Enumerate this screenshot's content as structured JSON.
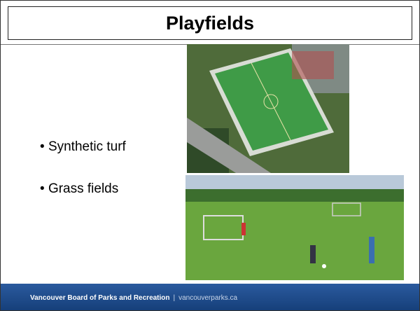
{
  "slide": {
    "title": "Playfields",
    "bullets": [
      "Synthetic turf",
      "Grass fields"
    ],
    "footer": {
      "organization": "Vancouver Board of Parks and Recreation",
      "separator": "|",
      "website": "vancouverparks.ca"
    }
  }
}
